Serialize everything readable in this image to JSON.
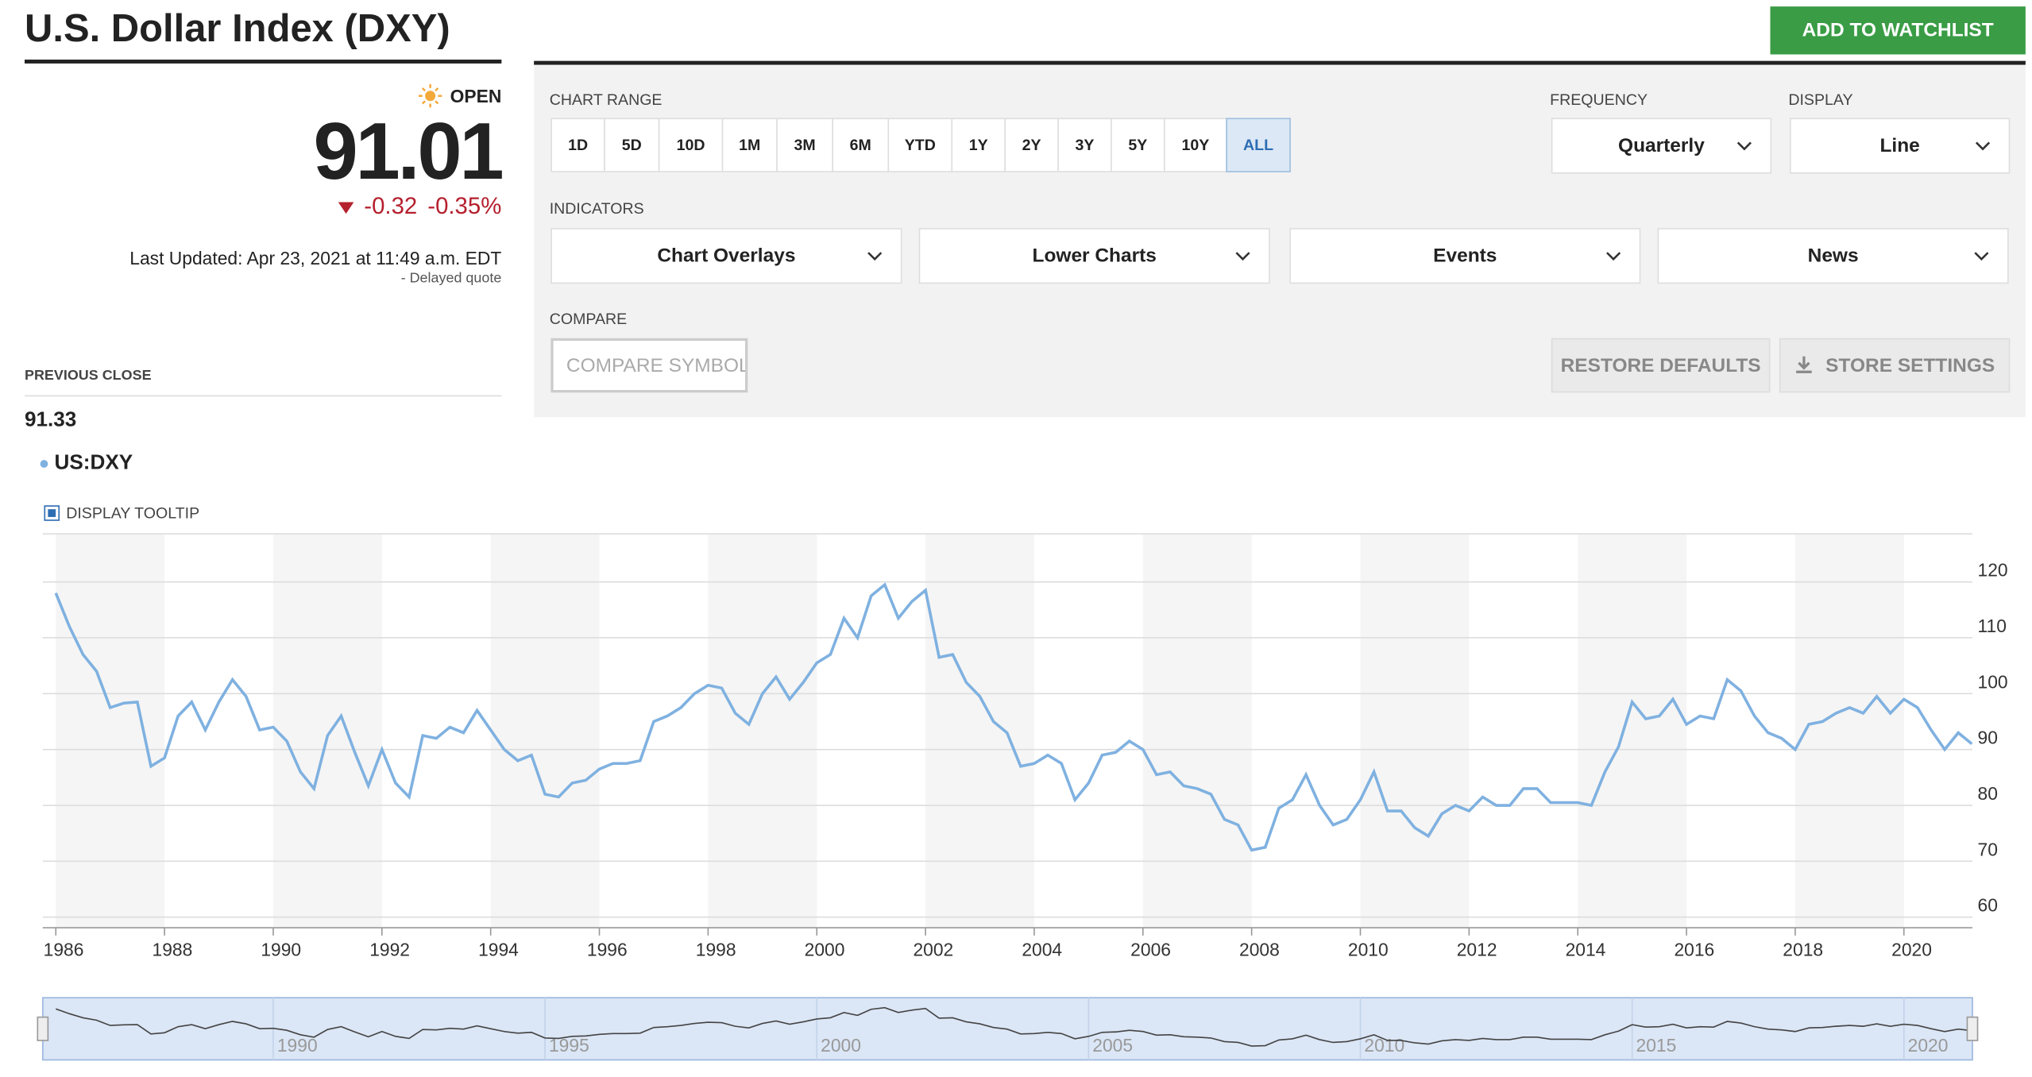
{
  "header": {
    "title": "U.S. Dollar Index (DXY)",
    "button": "ADD TO WATCHLIST"
  },
  "quote": {
    "status": "OPEN",
    "price": "91.01",
    "change": "-0.32",
    "change_percent": "-0.35%",
    "last_updated": "Last Updated: Apr 23, 2021 at 11:49 a.m. EDT",
    "delayed": "-  Delayed quote",
    "previous_close_label": "PREVIOUS CLOSE",
    "previous_close": "91.33"
  },
  "controls": {
    "chart_range_label": "CHART RANGE",
    "ranges": [
      "1D",
      "5D",
      "10D",
      "1M",
      "3M",
      "6M",
      "YTD",
      "1Y",
      "2Y",
      "3Y",
      "5Y",
      "10Y",
      "ALL"
    ],
    "selected_range": 12,
    "frequency_label": "FREQUENCY",
    "frequency": "Quarterly",
    "display_label": "DISPLAY",
    "display": "Line",
    "indicators_label": "INDICATORS",
    "indicators": [
      "Chart Overlays",
      "Lower Charts",
      "Events",
      "News"
    ],
    "compare_label": "COMPARE",
    "compare_placeholder": "COMPARE SYMBOL",
    "buttons": [
      "RESTORE DEFAULTS",
      "STORE SETTINGS"
    ]
  },
  "chart_data": {
    "type": "line",
    "tooltip_label": "DISPLAY TOOLTIP",
    "x": [
      1986,
      1986.25,
      1986.5,
      1986.75,
      1987,
      1987.25,
      1987.5,
      1987.75,
      1988,
      1988.25,
      1988.5,
      1988.75,
      1989,
      1989.25,
      1989.5,
      1989.75,
      1990,
      1990.25,
      1990.5,
      1990.75,
      1991,
      1991.25,
      1991.5,
      1991.75,
      1992,
      1992.25,
      1992.5,
      1992.75,
      1993,
      1993.25,
      1993.5,
      1993.75,
      1994,
      1994.25,
      1994.5,
      1994.75,
      1995,
      1995.25,
      1995.5,
      1995.75,
      1996,
      1996.25,
      1996.5,
      1996.75,
      1997,
      1997.25,
      1997.5,
      1997.75,
      1998,
      1998.25,
      1998.5,
      1998.75,
      1999,
      1999.25,
      1999.5,
      1999.75,
      2000,
      2000.25,
      2000.5,
      2000.75,
      2001,
      2001.25,
      2001.5,
      2001.75,
      2002,
      2002.25,
      2002.5,
      2002.75,
      2003,
      2003.25,
      2003.5,
      2003.75,
      2004,
      2004.25,
      2004.5,
      2004.75,
      2005,
      2005.25,
      2005.5,
      2005.75,
      2006,
      2006.25,
      2006.5,
      2006.75,
      2007,
      2007.25,
      2007.5,
      2007.75,
      2008,
      2008.25,
      2008.5,
      2008.75,
      2009,
      2009.25,
      2009.5,
      2009.75,
      2010,
      2010.25,
      2010.5,
      2010.75,
      2011,
      2011.25,
      2011.5,
      2011.75,
      2012,
      2012.25,
      2012.5,
      2012.75,
      2013,
      2013.25,
      2013.5,
      2013.75,
      2014,
      2014.25,
      2014.5,
      2014.75,
      2015,
      2015.25,
      2015.5,
      2015.75,
      2016,
      2016.25,
      2016.5,
      2016.75,
      2017,
      2017.25,
      2017.5,
      2017.75,
      2018,
      2018.25,
      2018.5,
      2018.75,
      2019,
      2019.25,
      2019.5,
      2019.75,
      2020,
      2020.25,
      2020.5,
      2020.75,
      2021,
      2021.25
    ],
    "series": [
      {
        "name": "US:DXY",
        "color": "#7fb1e0",
        "values": [
          118,
          112,
          107,
          104,
          97.5,
          98.3,
          98.5,
          87,
          88.5,
          96,
          98.5,
          93.5,
          98.5,
          102.5,
          99.5,
          93.5,
          94,
          91.5,
          86,
          83,
          92.5,
          96,
          89.5,
          83.5,
          90,
          84,
          81.5,
          92.5,
          92,
          94,
          93,
          97,
          93.5,
          90,
          88,
          89,
          82,
          81.5,
          84,
          84.5,
          86.5,
          87.5,
          87.5,
          88,
          95,
          96,
          97.5,
          100,
          101.5,
          101,
          96.5,
          94.5,
          100,
          103,
          99,
          102,
          105.5,
          107,
          113.5,
          110,
          117.5,
          119.5,
          113.5,
          116.5,
          118.5,
          106.5,
          107,
          102,
          99.5,
          95,
          93,
          87,
          87.5,
          89,
          87.5,
          81,
          84,
          89,
          89.5,
          91.5,
          90,
          85.5,
          86,
          83.5,
          83,
          82,
          77.5,
          76.5,
          72,
          72.5,
          79.5,
          81,
          85.5,
          80,
          76.5,
          77.5,
          81,
          86,
          79,
          79,
          76,
          74.5,
          78.5,
          80,
          79,
          81.5,
          80,
          80,
          83,
          83,
          80.5,
          80.5,
          80.5,
          80,
          86,
          90.5,
          98.5,
          95.5,
          96,
          99,
          94.5,
          96,
          95.5,
          102.5,
          100.5,
          96,
          93,
          92,
          90,
          94.5,
          95,
          96.5,
          97.5,
          96.5,
          99.5,
          96.5,
          99,
          97.5,
          93.5,
          90,
          93,
          91
        ]
      }
    ],
    "xlim": [
      1985.76,
      2021.26
    ],
    "xticks": [
      1986,
      1988,
      1990,
      1992,
      1994,
      1996,
      1998,
      2000,
      2002,
      2004,
      2006,
      2008,
      2010,
      2012,
      2014,
      2016,
      2018,
      2020
    ],
    "ylim": [
      58.1,
      128.6
    ],
    "yticks": [
      60,
      70,
      80,
      90,
      100,
      110,
      120
    ],
    "grid": true,
    "navigator_xticks": [
      1990,
      1995,
      2000,
      2005,
      2010,
      2015,
      2020
    ]
  }
}
